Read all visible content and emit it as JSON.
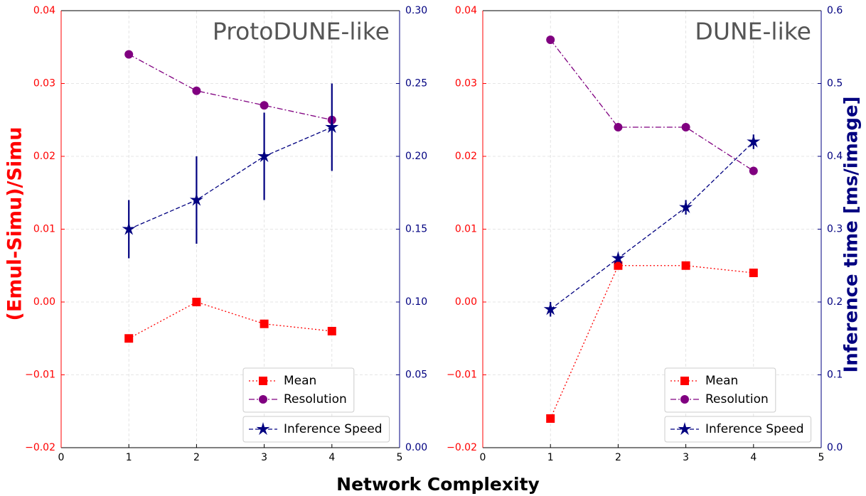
{
  "figure": {
    "xlabel": "Network Complexity",
    "ylabel": "(Emul-Simu)/Simu",
    "y2label": "Inference time [ms/image]"
  },
  "chart_data": [
    {
      "type": "line",
      "title": "ProtoDUNE-like",
      "x": [
        1,
        2,
        3,
        4
      ],
      "xlim": [
        0,
        5
      ],
      "xticks": [
        0,
        1,
        2,
        3,
        4,
        5
      ],
      "ylim": [
        -0.02,
        0.04
      ],
      "yticks": [
        {
          "value": -0.02,
          "label": "−0.02"
        },
        {
          "value": -0.01,
          "label": "−0.01"
        },
        {
          "value": 0,
          "label": "0.00"
        },
        0.01,
        0.02,
        0.03,
        0.04
      ],
      "y2lim": [
        0,
        0.3
      ],
      "y2ticks": [
        {
          "value": 0,
          "label": "0.00"
        },
        0.05,
        {
          "value": 0.1,
          "label": "0.10"
        },
        0.15,
        {
          "value": 0.2,
          "label": "0.20"
        },
        0.25,
        {
          "value": 0.3,
          "label": "0.30"
        }
      ],
      "grid": true,
      "legend": "lower right",
      "series": [
        {
          "name": "Mean",
          "color": "#ff0000",
          "marker": "square",
          "dash": "dotted",
          "values": [
            -0.005,
            0.0,
            -0.003,
            -0.004
          ]
        },
        {
          "name": "Resolution",
          "color": "#800080",
          "marker": "circle",
          "dash": "dashdot",
          "values": [
            0.034,
            0.029,
            0.027,
            0.025
          ]
        },
        {
          "name": "Inference Speed",
          "color": "#000080",
          "marker": "star",
          "dash": "dashed",
          "axis": "y2",
          "values": [
            0.15,
            0.17,
            0.2,
            0.22
          ],
          "errors": [
            0.02,
            0.03,
            0.03,
            0.03
          ]
        }
      ]
    },
    {
      "type": "line",
      "title": "DUNE-like",
      "x": [
        1,
        2,
        3,
        4
      ],
      "xlim": [
        0,
        5
      ],
      "xticks": [
        0,
        1,
        2,
        3,
        4,
        5
      ],
      "ylim": [
        -0.02,
        0.04
      ],
      "yticks": [
        {
          "value": -0.02,
          "label": "−0.02"
        },
        {
          "value": -0.01,
          "label": "−0.01"
        },
        {
          "value": 0,
          "label": "0.00"
        },
        0.01,
        0.02,
        0.03,
        0.04
      ],
      "y2lim": [
        0,
        0.6
      ],
      "y2ticks": [
        {
          "value": 0,
          "label": "0.0"
        },
        0.1,
        0.2,
        0.3,
        0.4,
        0.5,
        0.6
      ],
      "grid": true,
      "legend": "lower right",
      "series": [
        {
          "name": "Mean",
          "color": "#ff0000",
          "marker": "square",
          "dash": "dotted",
          "values": [
            -0.016,
            0.005,
            0.005,
            0.004
          ]
        },
        {
          "name": "Resolution",
          "color": "#800080",
          "marker": "circle",
          "dash": "dashdot",
          "values": [
            0.036,
            0.024,
            0.024,
            0.018
          ]
        },
        {
          "name": "Inference Speed",
          "color": "#000080",
          "marker": "star",
          "dash": "dashed",
          "axis": "y2",
          "values": [
            0.19,
            0.26,
            0.33,
            0.42
          ],
          "errors": [
            0.01,
            0.005,
            0.01,
            0.01
          ]
        }
      ]
    }
  ]
}
